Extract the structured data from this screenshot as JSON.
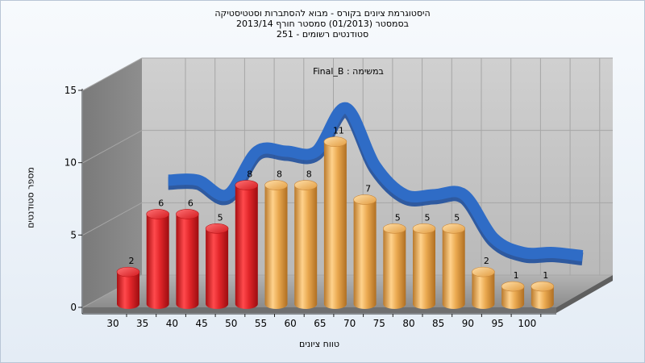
{
  "header": {
    "line1": "היסטוגרמת ציונים בקורס - מבוא להסתברות וסטטיסטיקה",
    "line2": "בסמסטר  (01/2013)  סמסטר חורף 2013/14",
    "line3": "סטודנטים רשומים - 251"
  },
  "chart_data": {
    "type": "bar",
    "title": "Final_B : במשימה",
    "xlabel": "טווח ציונים",
    "ylabel": "מספר סטודנטים",
    "categories": [
      "30",
      "35",
      "40",
      "45",
      "50",
      "55",
      "60",
      "65",
      "70",
      "75",
      "80",
      "85",
      "90",
      "95",
      "100"
    ],
    "series": [
      {
        "values": [
          2,
          6,
          6,
          5,
          8,
          8,
          8,
          11,
          7,
          5,
          5,
          5,
          2,
          1,
          1
        ]
      }
    ],
    "bar_colors": [
      "#e2262a",
      "#e2262a",
      "#e2262a",
      "#e2262a",
      "#e2262a",
      "#e9a84f",
      "#e9a84f",
      "#e9a84f",
      "#e9a84f",
      "#e9a84f",
      "#e9a84f",
      "#e9a84f",
      "#e9a84f",
      "#e9a84f",
      "#e9a84f"
    ],
    "ylim": [
      0,
      15
    ],
    "yticks": [
      "0",
      "5",
      "10",
      "15"
    ],
    "grid": true,
    "curve_color": "#2f6cc6"
  }
}
